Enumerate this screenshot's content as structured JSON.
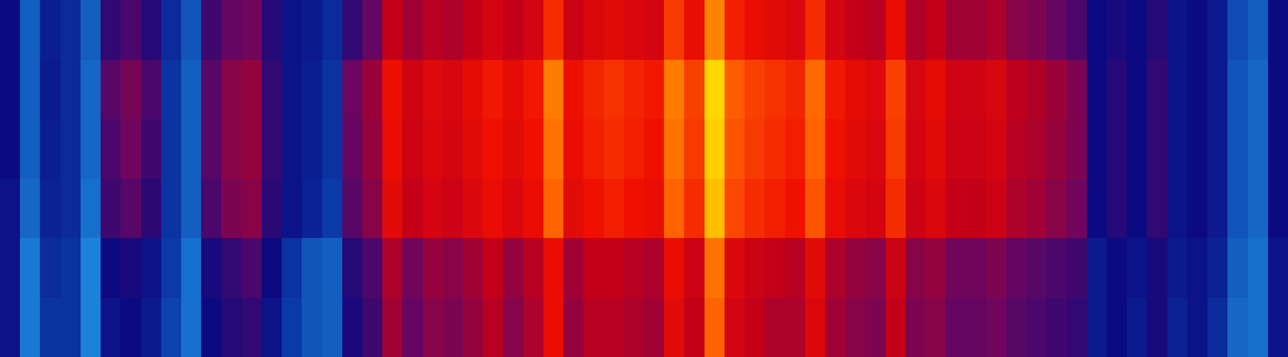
{
  "chart_data": {
    "type": "heatmap",
    "tick_labels": false,
    "zlim": [
      0,
      1
    ],
    "cells": [
      [
        0.3,
        0.1,
        0.25,
        0.22,
        0.1,
        0.36,
        0.4,
        0.34,
        0.22,
        0.12,
        0.38,
        0.44,
        0.46,
        0.34,
        0.28,
        0.26,
        0.22,
        0.36,
        0.44,
        0.6,
        0.54,
        0.58,
        0.56,
        0.6,
        0.64,
        0.6,
        0.64,
        0.76,
        0.62,
        0.66,
        0.68,
        0.66,
        0.64,
        0.78,
        0.7,
        0.88,
        0.74,
        0.7,
        0.68,
        0.66,
        0.76,
        0.64,
        0.6,
        0.58,
        0.7,
        0.56,
        0.6,
        0.54,
        0.54,
        0.56,
        0.5,
        0.48,
        0.44,
        0.4,
        0.3,
        0.32,
        0.3,
        0.34,
        0.28,
        0.3,
        0.26,
        0.14,
        0.1,
        0.3
      ],
      [
        0.3,
        0.1,
        0.26,
        0.22,
        0.08,
        0.42,
        0.47,
        0.4,
        0.2,
        0.1,
        0.42,
        0.5,
        0.52,
        0.36,
        0.28,
        0.25,
        0.2,
        0.45,
        0.53,
        0.71,
        0.63,
        0.67,
        0.65,
        0.69,
        0.73,
        0.69,
        0.73,
        0.87,
        0.71,
        0.75,
        0.77,
        0.75,
        0.73,
        0.87,
        0.79,
        0.98,
        0.83,
        0.79,
        0.77,
        0.75,
        0.85,
        0.73,
        0.69,
        0.67,
        0.79,
        0.65,
        0.69,
        0.63,
        0.63,
        0.65,
        0.59,
        0.57,
        0.53,
        0.48,
        0.3,
        0.34,
        0.3,
        0.36,
        0.28,
        0.3,
        0.26,
        0.12,
        0.08,
        0.3
      ],
      [
        0.3,
        0.1,
        0.25,
        0.22,
        0.08,
        0.4,
        0.46,
        0.38,
        0.2,
        0.1,
        0.42,
        0.5,
        0.52,
        0.36,
        0.28,
        0.25,
        0.2,
        0.44,
        0.52,
        0.7,
        0.62,
        0.66,
        0.64,
        0.68,
        0.72,
        0.68,
        0.72,
        0.86,
        0.7,
        0.74,
        0.76,
        0.74,
        0.72,
        0.86,
        0.78,
        0.97,
        0.82,
        0.78,
        0.76,
        0.74,
        0.84,
        0.72,
        0.68,
        0.66,
        0.78,
        0.64,
        0.68,
        0.62,
        0.62,
        0.64,
        0.58,
        0.56,
        0.52,
        0.48,
        0.3,
        0.34,
        0.3,
        0.36,
        0.28,
        0.3,
        0.26,
        0.12,
        0.08,
        0.3
      ],
      [
        0.28,
        0.08,
        0.24,
        0.22,
        0.06,
        0.38,
        0.42,
        0.35,
        0.2,
        0.1,
        0.4,
        0.48,
        0.5,
        0.35,
        0.28,
        0.24,
        0.18,
        0.42,
        0.5,
        0.68,
        0.6,
        0.64,
        0.62,
        0.66,
        0.7,
        0.66,
        0.7,
        0.84,
        0.68,
        0.72,
        0.74,
        0.72,
        0.7,
        0.84,
        0.76,
        0.95,
        0.8,
        0.76,
        0.74,
        0.72,
        0.82,
        0.7,
        0.66,
        0.64,
        0.76,
        0.62,
        0.66,
        0.6,
        0.6,
        0.62,
        0.56,
        0.54,
        0.5,
        0.46,
        0.3,
        0.34,
        0.3,
        0.36,
        0.28,
        0.3,
        0.26,
        0.12,
        0.08,
        0.3
      ],
      [
        0.28,
        0.04,
        0.22,
        0.2,
        0.02,
        0.3,
        0.32,
        0.28,
        0.18,
        0.06,
        0.32,
        0.36,
        0.4,
        0.3,
        0.2,
        0.12,
        0.1,
        0.34,
        0.4,
        0.56,
        0.46,
        0.52,
        0.5,
        0.54,
        0.6,
        0.52,
        0.58,
        0.7,
        0.54,
        0.6,
        0.6,
        0.58,
        0.56,
        0.7,
        0.62,
        0.86,
        0.66,
        0.62,
        0.6,
        0.58,
        0.68,
        0.56,
        0.52,
        0.5,
        0.62,
        0.5,
        0.52,
        0.46,
        0.46,
        0.48,
        0.44,
        0.42,
        0.4,
        0.38,
        0.26,
        0.3,
        0.28,
        0.32,
        0.26,
        0.28,
        0.24,
        0.1,
        0.06,
        0.28
      ],
      [
        0.28,
        0.04,
        0.2,
        0.2,
        0.02,
        0.28,
        0.3,
        0.26,
        0.16,
        0.06,
        0.3,
        0.34,
        0.36,
        0.28,
        0.18,
        0.12,
        0.1,
        0.32,
        0.38,
        0.54,
        0.44,
        0.5,
        0.48,
        0.52,
        0.58,
        0.5,
        0.56,
        0.7,
        0.52,
        0.58,
        0.58,
        0.56,
        0.54,
        0.68,
        0.6,
        0.84,
        0.64,
        0.6,
        0.56,
        0.56,
        0.66,
        0.54,
        0.5,
        0.48,
        0.6,
        0.48,
        0.5,
        0.44,
        0.44,
        0.46,
        0.42,
        0.4,
        0.38,
        0.36,
        0.26,
        0.3,
        0.26,
        0.32,
        0.24,
        0.28,
        0.22,
        0.08,
        0.06,
        0.28
      ]
    ]
  }
}
